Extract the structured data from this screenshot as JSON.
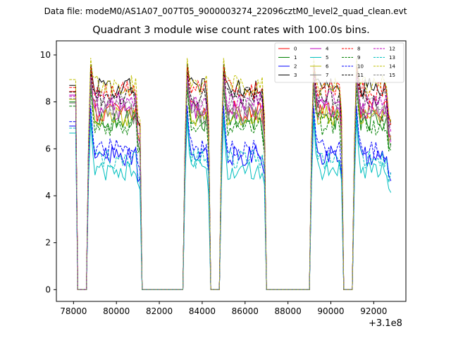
{
  "figure": {
    "data_file_label": "Data file: modeM0/AS1A07_007T05_9000003274_22096cztM0_level2_quad_clean.evt"
  },
  "chart_data": {
    "type": "line",
    "title": "Quadrant 3 module wise count rates with 100.0s bins.",
    "xlabel": "",
    "ylabel": "",
    "x_offset_label": "+3.1e8",
    "xlim": [
      77200,
      93500
    ],
    "ylim": [
      -0.5,
      10.6
    ],
    "x_ticks": [
      78000,
      80000,
      82000,
      84000,
      86000,
      88000,
      90000,
      92000
    ],
    "x_tick_labels": [
      "78000",
      "80000",
      "82000",
      "84000",
      "86000",
      "88000",
      "90000",
      "92000"
    ],
    "y_ticks": [
      0,
      2,
      4,
      6,
      8,
      10
    ],
    "y_tick_labels": [
      "0",
      "2",
      "4",
      "6",
      "8",
      "10"
    ],
    "grid": false,
    "legend_position": "top-right",
    "bin_seconds": 100,
    "orbit_segments": [
      {
        "start": 77800,
        "end": 78150
      },
      {
        "start": 78650,
        "end": 81100
      },
      {
        "start": 83150,
        "end": 84350
      },
      {
        "start": 84850,
        "end": 86950
      },
      {
        "start": 89050,
        "end": 90550
      },
      {
        "start": 91050,
        "end": 92800
      }
    ],
    "zero_bins": [
      {
        "start": 78250,
        "end": 78550
      },
      {
        "start": 81200,
        "end": 83050
      },
      {
        "start": 84450,
        "end": 84750
      },
      {
        "start": 87050,
        "end": 88950
      },
      {
        "start": 90650,
        "end": 90950
      }
    ],
    "series": [
      {
        "name": "0",
        "color": "#ff0000",
        "style": "solid",
        "level": 7.6,
        "peak": 9.6
      },
      {
        "name": "1",
        "color": "#008000",
        "style": "solid",
        "level": 7.2,
        "peak": 9.1
      },
      {
        "name": "2",
        "color": "#0000ff",
        "style": "solid",
        "level": 5.7,
        "peak": 8.0
      },
      {
        "name": "3",
        "color": "#000000",
        "style": "solid",
        "level": 8.6,
        "peak": 9.8
      },
      {
        "name": "4",
        "color": "#bf00bf",
        "style": "solid",
        "level": 7.7,
        "peak": 9.4
      },
      {
        "name": "5",
        "color": "#00bfbf",
        "style": "solid",
        "level": 5.1,
        "peak": 7.7
      },
      {
        "name": "6",
        "color": "#bfbf00",
        "style": "solid",
        "level": 7.4,
        "peak": 9.2
      },
      {
        "name": "7",
        "color": "#808080",
        "style": "solid",
        "level": 7.5,
        "peak": 9.0
      },
      {
        "name": "8",
        "color": "#ff0000",
        "style": "dashed",
        "level": 8.5,
        "peak": 9.7
      },
      {
        "name": "9",
        "color": "#008000",
        "style": "dashed",
        "level": 7.0,
        "peak": 8.9
      },
      {
        "name": "10",
        "color": "#0000ff",
        "style": "dashed",
        "level": 6.0,
        "peak": 8.2
      },
      {
        "name": "11",
        "color": "#000000",
        "style": "dashed",
        "level": 8.2,
        "peak": 9.5
      },
      {
        "name": "12",
        "color": "#bf00bf",
        "style": "dashed",
        "level": 8.0,
        "peak": 9.3
      },
      {
        "name": "13",
        "color": "#00bfbf",
        "style": "dashed",
        "level": 5.6,
        "peak": 7.9
      },
      {
        "name": "14",
        "color": "#bfbf00",
        "style": "dashed",
        "level": 8.7,
        "peak": 10.1
      },
      {
        "name": "15",
        "color": "#808080",
        "style": "dashed",
        "level": 7.8,
        "peak": 9.2
      }
    ]
  }
}
